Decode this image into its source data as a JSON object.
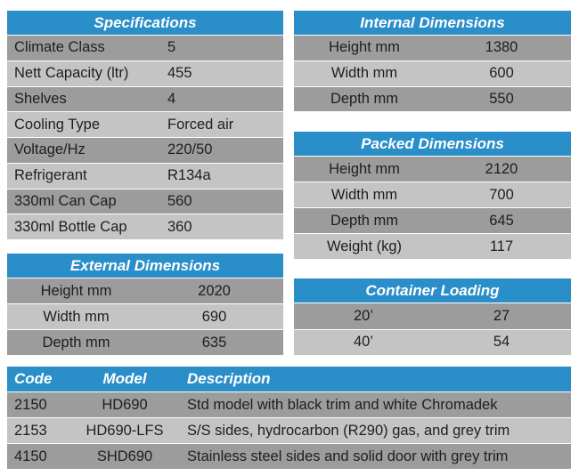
{
  "specifications": {
    "title": "Specifications",
    "rows": [
      [
        "Climate Class",
        5
      ],
      [
        "Nett Capacity (ltr)",
        455
      ],
      [
        "Shelves",
        4
      ],
      [
        "Cooling Type",
        "Forced air"
      ],
      [
        "Voltage/Hz",
        "220/50"
      ],
      [
        "Refrigerant",
        "R134a"
      ],
      [
        "330ml Can Cap",
        560
      ],
      [
        "330ml Bottle Cap",
        360
      ]
    ]
  },
  "internal_dimensions": {
    "title": "Internal Dimensions",
    "rows": [
      [
        "Height mm",
        1380
      ],
      [
        "Width mm",
        600
      ],
      [
        "Depth mm",
        550
      ]
    ]
  },
  "packed_dimensions": {
    "title": "Packed Dimensions",
    "rows": [
      [
        "Height mm",
        2120
      ],
      [
        "Width mm",
        700
      ],
      [
        "Depth mm",
        645
      ],
      [
        "Weight (kg)",
        117
      ]
    ]
  },
  "external_dimensions": {
    "title": "External Dimensions",
    "rows": [
      [
        "Height mm",
        2020
      ],
      [
        "Width mm",
        690
      ],
      [
        "Depth mm",
        635
      ]
    ]
  },
  "container_loading": {
    "title": "Container Loading",
    "rows": [
      [
        "20’",
        27
      ],
      [
        "40’",
        54
      ]
    ]
  },
  "models": {
    "headers": [
      "Code",
      "Model",
      "Description"
    ],
    "rows": [
      [
        2150,
        "HD690",
        "Std model with black trim and white Chromadek"
      ],
      [
        2153,
        "HD690-LFS",
        "S/S sides, hydrocarbon (R290) gas, and grey trim"
      ],
      [
        4150,
        "SHD690",
        "Stainless steel sides and solid door with grey trim"
      ]
    ]
  }
}
